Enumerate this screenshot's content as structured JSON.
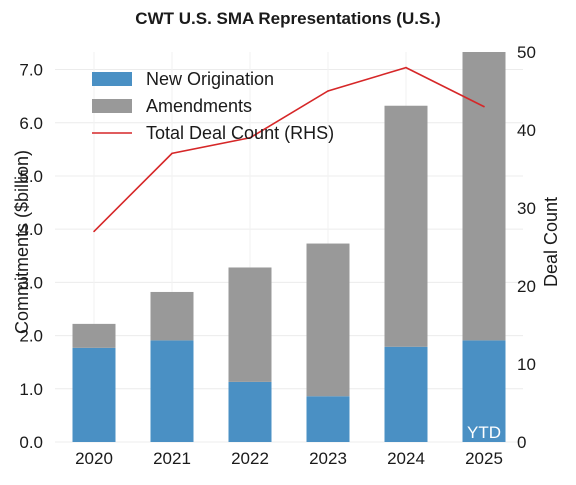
{
  "chart_data": {
    "type": "bar",
    "title": "CWT U.S. SMA Representations (U.S.)",
    "categories": [
      "2020",
      "2021",
      "2022",
      "2023",
      "2024",
      "2025"
    ],
    "series": [
      {
        "name": "New Origination",
        "type": "bar",
        "stack": "commitments",
        "axis": "left",
        "color": "#4a90c4",
        "values": [
          1.77,
          1.91,
          1.13,
          0.86,
          1.79,
          1.91
        ]
      },
      {
        "name": "Amendments",
        "type": "bar",
        "stack": "commitments",
        "axis": "left",
        "color": "#999999",
        "values": [
          0.45,
          0.91,
          2.15,
          2.87,
          4.53,
          5.42
        ]
      },
      {
        "name": "Total Deal Count (RHS)",
        "type": "line",
        "axis": "right",
        "color": "#d62728",
        "values": [
          27,
          37,
          39,
          45,
          48,
          43
        ]
      }
    ],
    "ylabel": "Commitments ($billion)",
    "ylabel_right": "Deal Count",
    "ylim": [
      0,
      7.33
    ],
    "ylim_right": [
      0,
      50
    ],
    "yticks": [
      "0.0",
      "1.0",
      "2.0",
      "3.0",
      "4.0",
      "5.0",
      "6.0",
      "7.0"
    ],
    "yticks_right": [
      "0",
      "10",
      "20",
      "30",
      "40",
      "50"
    ],
    "annotation": "YTD",
    "legend_position": "top-left",
    "grid": true
  }
}
